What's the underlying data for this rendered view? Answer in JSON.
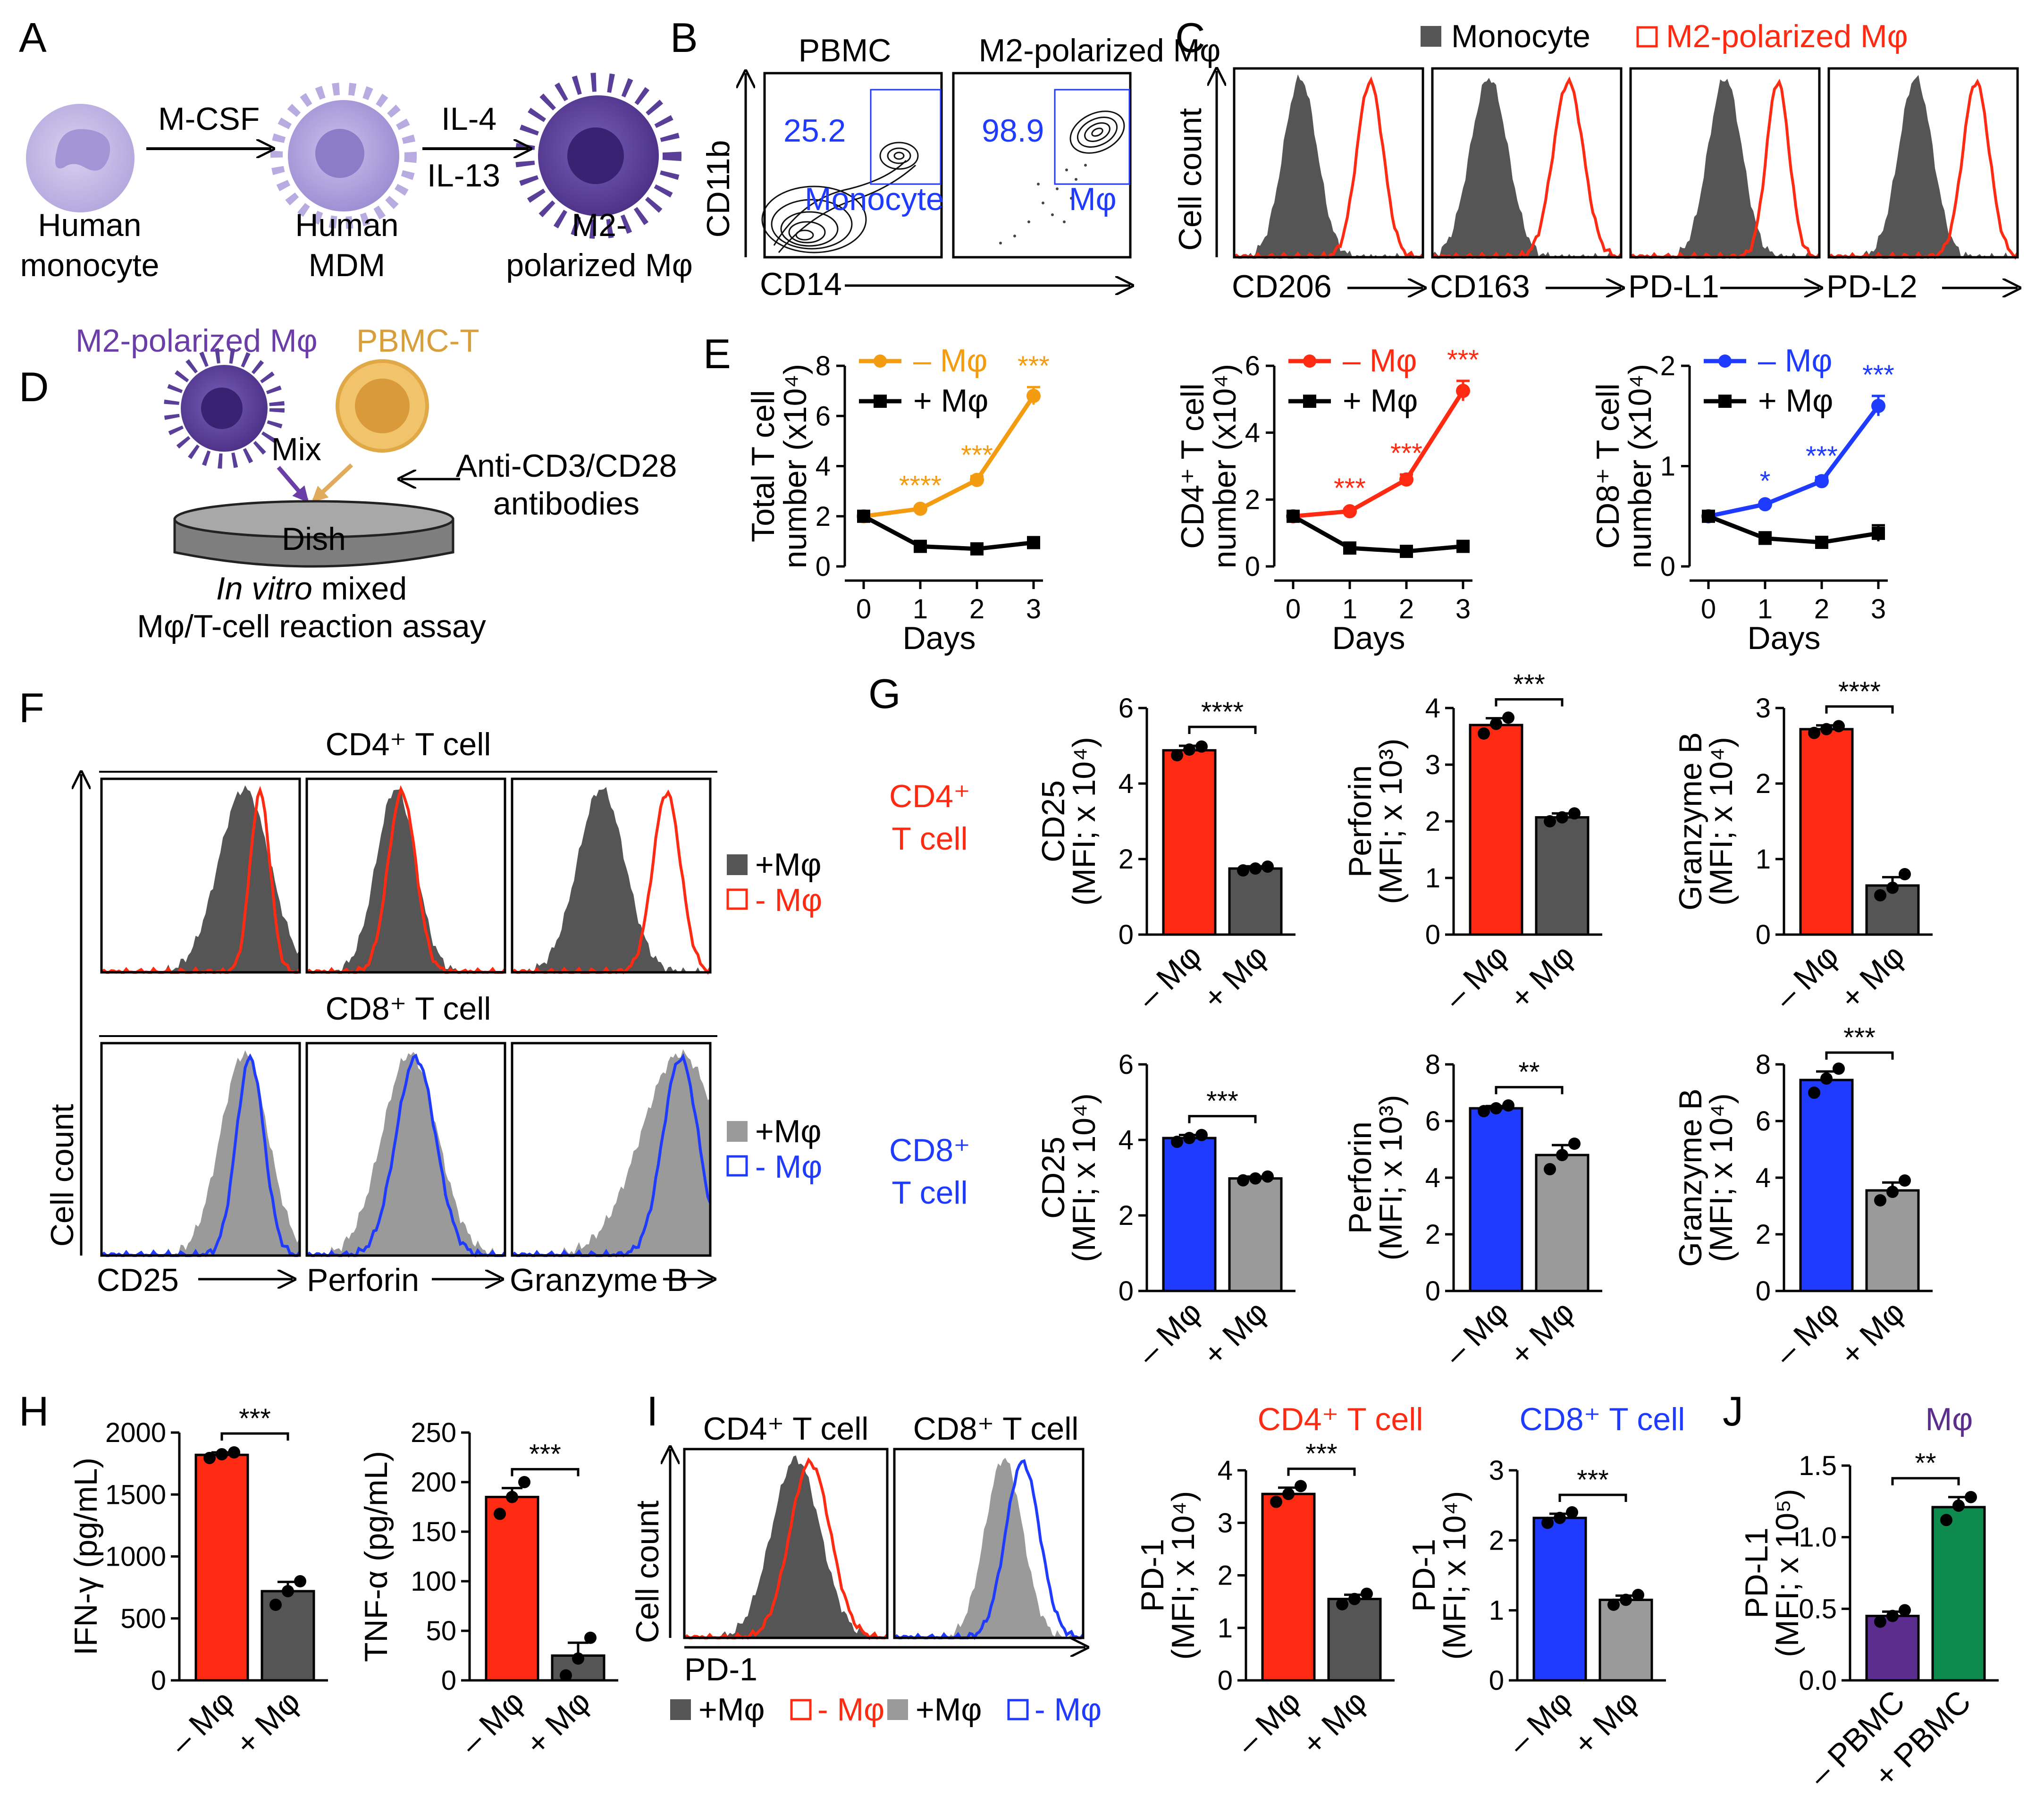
{
  "colors": {
    "red": "#ff2a12",
    "blue": "#1f3bff",
    "orange": "#f39c12",
    "darkgray": "#555555",
    "lightgray": "#9a9a9a",
    "purple": "#5b2d8e",
    "green": "#0f8a4e",
    "cellPale": "#c9bfe6",
    "cellMid": "#a99ad8",
    "cellDark": "#5b3f97",
    "tcell": "#e1a84a"
  },
  "panel_letters": [
    "A",
    "B",
    "C",
    "D",
    "E",
    "F",
    "G",
    "H",
    "I",
    "J"
  ],
  "panelA": {
    "cells": [
      "Human monocyte",
      "Human MDM",
      "M2-polarized Mφ"
    ],
    "labels": [
      [
        "Human",
        "monocyte"
      ],
      [
        "Human",
        "MDM"
      ],
      [
        "M2-",
        "polarized Mφ"
      ]
    ],
    "arrow1": "M-CSF",
    "arrow2_top": "IL-4",
    "arrow2_bottom": "IL-13"
  },
  "panelB": {
    "titles": [
      "PBMC",
      "M2-polarized Mφ"
    ],
    "values": [
      "25.2",
      "98.9"
    ],
    "gate_labels": [
      "Monocyte",
      "Mφ"
    ],
    "ylabel": "CD11b",
    "xlabel": "CD14"
  },
  "panelC": {
    "legend": [
      "Monocyte",
      "M2-polarized Mφ"
    ],
    "ylabel": "Cell count",
    "markers": [
      "CD206",
      "CD163",
      "PD-L1",
      "PD-L2"
    ]
  },
  "panelD": {
    "mac_label": "M2-polarized Mφ",
    "t_label": "PBMC-T",
    "mix": "Mix",
    "dish": "Dish",
    "antibodies": [
      "Anti-CD3/CD28",
      "antibodies"
    ],
    "caption_italic": "In vitro",
    "caption_rest": " mixed",
    "caption2": "Mφ/T-cell reaction assay"
  },
  "panelF": {
    "cd4_title": "CD4⁺ T cell",
    "cd8_title": "CD8⁺ T cell",
    "ylabel": "Cell count",
    "markers": [
      "CD25",
      "Perforin",
      "Granzyme B"
    ],
    "legend_cd4": [
      "+Mφ",
      "- Mφ"
    ],
    "legend_cd8": [
      "+Mφ",
      "- Mφ"
    ]
  },
  "panelG": {
    "row_labels": [
      [
        "CD4⁺",
        "T cell"
      ],
      [
        "CD8⁺",
        "T cell"
      ]
    ],
    "xcats": [
      "– Mφ",
      "+ Mφ"
    ]
  },
  "panelI": {
    "titles": [
      "CD4⁺ T cell",
      "CD8⁺ T cell"
    ],
    "ylabel": "Cell count",
    "xlabel": "PD-1",
    "legend": [
      "+Mφ",
      "- Mφ",
      "+Mφ",
      "- Mφ"
    ],
    "bar_titles": [
      "CD4⁺ T cell",
      "CD8⁺ T cell"
    ]
  },
  "panelJ": {
    "title": "Mφ",
    "xcats": [
      "– PBMC",
      "+ PBMC"
    ]
  },
  "chart_data": [
    {
      "id": "E1",
      "type": "line",
      "xlabel": "Days",
      "ylabel": "Total T cell number (x10⁴)",
      "ylim": [
        0,
        8
      ],
      "yticks": [
        "0",
        "2",
        "4",
        "6",
        "8"
      ],
      "x": [
        0,
        1,
        2,
        3
      ],
      "series": [
        {
          "name": "– Mφ",
          "values": [
            2.0,
            2.3,
            3.45,
            6.8
          ],
          "err": [
            0.05,
            0.08,
            0.15,
            0.35
          ]
        },
        {
          "name": "+ Mφ",
          "values": [
            2.0,
            0.8,
            0.7,
            0.95
          ],
          "err": [
            0.05,
            0.1,
            0.12,
            0.2
          ]
        }
      ],
      "annotations": [
        "",
        "****",
        "***",
        "***"
      ]
    },
    {
      "id": "E2",
      "type": "line",
      "xlabel": "Days",
      "ylabel": "CD4⁺ T cell number (x10⁴)",
      "ylim": [
        0,
        6
      ],
      "yticks": [
        "0",
        "2",
        "4",
        "6"
      ],
      "x": [
        0,
        1,
        2,
        3
      ],
      "series": [
        {
          "name": "– Mφ",
          "values": [
            1.5,
            1.65,
            2.6,
            5.25
          ],
          "err": [
            0.05,
            0.06,
            0.15,
            0.3
          ]
        },
        {
          "name": "+ Mφ",
          "values": [
            1.5,
            0.55,
            0.45,
            0.6
          ],
          "err": [
            0.05,
            0.08,
            0.08,
            0.1
          ]
        }
      ],
      "annotations": [
        "",
        "***",
        "***",
        "***"
      ]
    },
    {
      "id": "E3",
      "type": "line",
      "xlabel": "Days",
      "ylabel": "CD8⁺ T cell number (x10⁴)",
      "ylim": [
        0,
        2
      ],
      "yticks": [
        "0",
        "1",
        "2"
      ],
      "x": [
        0,
        1,
        2,
        3
      ],
      "series": [
        {
          "name": "– Mφ",
          "values": [
            0.5,
            0.62,
            0.85,
            1.6
          ],
          "err": [
            0.02,
            0.02,
            0.04,
            0.1
          ]
        },
        {
          "name": "+ Mφ",
          "values": [
            0.5,
            0.28,
            0.24,
            0.33
          ],
          "err": [
            0.02,
            0.06,
            0.04,
            0.08
          ]
        }
      ],
      "annotations": [
        "",
        "*",
        "***",
        "***"
      ]
    },
    {
      "id": "G1",
      "type": "bar",
      "ylabel": "CD25",
      "ylabel2": "(MFI; x 10⁴)",
      "ylim": [
        0,
        6
      ],
      "yticks": [
        "0",
        "2",
        "4",
        "6"
      ],
      "categories": [
        "– Mφ",
        "+ Mφ"
      ],
      "values": [
        4.88,
        1.75
      ],
      "err": [
        0.12,
        0.06
      ],
      "points": [
        [
          4.75,
          4.9,
          4.98
        ],
        [
          1.7,
          1.75,
          1.8
        ]
      ],
      "sig": "****"
    },
    {
      "id": "G2",
      "type": "bar",
      "ylabel": "Perforin",
      "ylabel2": "(MFI; x 10³)",
      "ylim": [
        0,
        4
      ],
      "yticks": [
        "0",
        "1",
        "2",
        "3",
        "4"
      ],
      "categories": [
        "– Mφ",
        "+ Mφ"
      ],
      "values": [
        3.7,
        2.07
      ],
      "err": [
        0.12,
        0.07
      ],
      "points": [
        [
          3.55,
          3.72,
          3.83
        ],
        [
          2.0,
          2.07,
          2.14
        ]
      ],
      "sig": "***"
    },
    {
      "id": "G3",
      "type": "bar",
      "ylabel": "Granzyme B",
      "ylabel2": "(MFI; x 10⁴)",
      "ylim": [
        0,
        3
      ],
      "yticks": [
        "0",
        "1",
        "2",
        "3"
      ],
      "categories": [
        "– Mφ",
        "+ Mφ"
      ],
      "values": [
        2.72,
        0.65
      ],
      "err": [
        0.05,
        0.11
      ],
      "points": [
        [
          2.67,
          2.72,
          2.76
        ],
        [
          0.52,
          0.62,
          0.8
        ]
      ],
      "sig": "****"
    },
    {
      "id": "G4",
      "type": "bar",
      "ylabel": "CD25",
      "ylabel2": "(MFI; x 10⁴)",
      "ylim": [
        0,
        6
      ],
      "yticks": [
        "0",
        "2",
        "4",
        "6"
      ],
      "categories": [
        "– Mφ",
        "+ Mφ"
      ],
      "values": [
        4.05,
        2.98
      ],
      "err": [
        0.08,
        0.05
      ],
      "points": [
        [
          3.95,
          4.05,
          4.13
        ],
        [
          2.93,
          2.98,
          3.03
        ]
      ],
      "sig": "***"
    },
    {
      "id": "G5",
      "type": "bar",
      "ylabel": "Perforin",
      "ylabel2": "(MFI; x 10³)",
      "ylim": [
        0,
        8
      ],
      "yticks": [
        "0",
        "2",
        "4",
        "6",
        "8"
      ],
      "categories": [
        "– Mφ",
        "+ Mφ"
      ],
      "values": [
        6.45,
        4.8
      ],
      "err": [
        0.08,
        0.35
      ],
      "points": [
        [
          6.35,
          6.45,
          6.55
        ],
        [
          4.3,
          4.8,
          5.2
        ]
      ],
      "sig": "**"
    },
    {
      "id": "G6",
      "type": "bar",
      "ylabel": "Granzyme B",
      "ylabel2": "(MFI; x 10⁴)",
      "ylim": [
        0,
        8
      ],
      "yticks": [
        "0",
        "2",
        "4",
        "6",
        "8"
      ],
      "categories": [
        "– Mφ",
        "+ Mφ"
      ],
      "values": [
        7.45,
        3.55
      ],
      "err": [
        0.3,
        0.28
      ],
      "points": [
        [
          7.0,
          7.5,
          7.85
        ],
        [
          3.2,
          3.5,
          3.9
        ]
      ],
      "sig": "***"
    },
    {
      "id": "H1",
      "type": "bar",
      "ylabel": "IFN-γ (pg/mL)",
      "ylim": [
        0,
        2000
      ],
      "yticks": [
        "0",
        "500",
        "1000",
        "1500",
        "2000"
      ],
      "categories": [
        "– Mφ",
        "+ Mφ"
      ],
      "values": [
        1820,
        720
      ],
      "err": [
        20,
        75
      ],
      "points": [
        [
          1795,
          1825,
          1840
        ],
        [
          610,
          720,
          800
        ]
      ],
      "sig": "***"
    },
    {
      "id": "H2",
      "type": "bar",
      "ylabel": "TNF-α (pg/mL)",
      "ylim": [
        0,
        250
      ],
      "yticks": [
        "0",
        "50",
        "100",
        "150",
        "200",
        "250"
      ],
      "categories": [
        "– Mφ",
        "+ Mφ"
      ],
      "values": [
        185,
        25
      ],
      "err": [
        9,
        13
      ],
      "points": [
        [
          168,
          185,
          200
        ],
        [
          5,
          22,
          43
        ]
      ],
      "sig": "***"
    },
    {
      "id": "I1",
      "type": "bar",
      "ylabel": "PD-1",
      "ylabel2": "(MFI; x 10⁴)",
      "ylim": [
        0,
        4
      ],
      "yticks": [
        "0",
        "1",
        "2",
        "3",
        "4"
      ],
      "categories": [
        "– Mφ",
        "+ Mφ"
      ],
      "values": [
        3.55,
        1.55
      ],
      "err": [
        0.12,
        0.08
      ],
      "points": [
        [
          3.4,
          3.55,
          3.7
        ],
        [
          1.45,
          1.55,
          1.65
        ]
      ],
      "sig": "***"
    },
    {
      "id": "I2",
      "type": "bar",
      "ylabel": "PD-1",
      "ylabel2": "(MFI; x 10⁴)",
      "ylim": [
        0,
        3
      ],
      "yticks": [
        "0",
        "1",
        "2",
        "3"
      ],
      "categories": [
        "– Mφ",
        "+ Mφ"
      ],
      "values": [
        2.32,
        1.15
      ],
      "err": [
        0.06,
        0.06
      ],
      "points": [
        [
          2.25,
          2.32,
          2.4
        ],
        [
          1.08,
          1.15,
          1.22
        ]
      ],
      "sig": "***"
    },
    {
      "id": "J1",
      "type": "bar",
      "ylabel": "PD-L1",
      "ylabel2": "(MFI; x 10⁵)",
      "ylim": [
        0,
        1.5
      ],
      "yticks": [
        "0.0",
        "0.5",
        "1.0",
        "1.5"
      ],
      "categories": [
        "– PBMC",
        "+ PBMC"
      ],
      "values": [
        0.45,
        1.21
      ],
      "err": [
        0.03,
        0.07
      ],
      "points": [
        [
          0.41,
          0.45,
          0.49
        ],
        [
          1.12,
          1.22,
          1.28
        ]
      ],
      "sig": "**"
    }
  ]
}
